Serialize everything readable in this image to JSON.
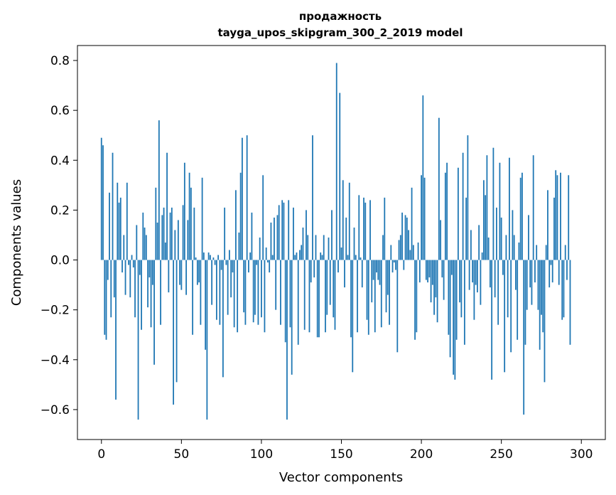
{
  "chart_data": {
    "type": "bar",
    "title": "продажность",
    "subtitle": "tayga_upos_skipgram_300_2_2019 model",
    "xlabel": "Vector components",
    "ylabel": "Components values",
    "xlim": [
      -15,
      315
    ],
    "ylim": [
      -0.72,
      0.86
    ],
    "x_ticks": [
      0,
      50,
      100,
      150,
      200,
      250,
      300
    ],
    "x_tick_labels": [
      "0",
      "50",
      "100",
      "150",
      "200",
      "250",
      "300"
    ],
    "y_ticks": [
      -0.6,
      -0.4,
      -0.2,
      0.0,
      0.2,
      0.4,
      0.6,
      0.8
    ],
    "y_tick_labels": [
      "−0.6",
      "−0.4",
      "−0.2",
      "0.0",
      "0.2",
      "0.4",
      "0.6",
      "0.8"
    ],
    "grid": false,
    "bar_color": "#1f77b4",
    "values": [
      0.49,
      0.46,
      -0.3,
      -0.32,
      -0.08,
      0.27,
      -0.23,
      0.43,
      -0.15,
      -0.56,
      0.31,
      0.23,
      0.25,
      -0.05,
      0.1,
      -0.14,
      0.31,
      -0.02,
      -0.15,
      0.02,
      -0.03,
      -0.23,
      0.14,
      -0.64,
      -0.06,
      -0.28,
      0.19,
      0.13,
      0.1,
      -0.19,
      -0.07,
      -0.27,
      -0.1,
      -0.42,
      0.29,
      0.15,
      0.56,
      -0.26,
      0.18,
      0.21,
      0.07,
      0.43,
      -0.13,
      0.19,
      0.21,
      -0.58,
      0.12,
      -0.49,
      0.16,
      -0.1,
      -0.12,
      0.22,
      0.39,
      -0.14,
      0.16,
      0.35,
      0.29,
      -0.3,
      0.21,
      0.01,
      -0.1,
      -0.09,
      -0.26,
      0.33,
      0.03,
      -0.36,
      -0.64,
      0.03,
      0.02,
      -0.18,
      0.01,
      -0.02,
      -0.24,
      0.02,
      -0.26,
      -0.04,
      -0.47,
      0.21,
      -0.02,
      -0.22,
      0.04,
      -0.15,
      -0.05,
      -0.27,
      0.28,
      -0.29,
      0.11,
      0.35,
      0.49,
      -0.21,
      -0.26,
      0.5,
      -0.05,
      0.03,
      0.19,
      -0.25,
      -0.22,
      -0.02,
      -0.26,
      0.09,
      -0.23,
      0.34,
      -0.29,
      0.05,
      -0.01,
      -0.05,
      0.15,
      0.02,
      0.17,
      -0.2,
      0.18,
      0.22,
      -0.26,
      0.24,
      0.23,
      -0.33,
      -0.64,
      0.24,
      -0.27,
      -0.46,
      0.21,
      0.02,
      0.03,
      -0.34,
      0.04,
      0.06,
      0.13,
      -0.28,
      0.2,
      0.1,
      -0.29,
      -0.09,
      0.5,
      -0.07,
      0.1,
      -0.31,
      -0.31,
      0.03,
      0.02,
      0.1,
      -0.29,
      -0.22,
      0.09,
      -0.18,
      0.2,
      -0.23,
      -0.28,
      0.79,
      -0.05,
      0.67,
      0.05,
      0.32,
      -0.11,
      0.17,
      0.02,
      0.31,
      -0.31,
      -0.45,
      0.13,
      0.02,
      -0.29,
      0.26,
      0.01,
      -0.11,
      0.25,
      0.23,
      -0.24,
      -0.3,
      0.24,
      -0.17,
      -0.08,
      -0.29,
      -0.05,
      -0.08,
      -0.1,
      -0.27,
      0.1,
      0.25,
      -0.21,
      -0.14,
      -0.26,
      0.06,
      -0.05,
      -0.01,
      -0.04,
      -0.37,
      0.08,
      0.1,
      0.19,
      -0.04,
      0.18,
      0.17,
      0.12,
      0.04,
      0.29,
      0.06,
      -0.32,
      -0.29,
      0.07,
      -0.09,
      0.34,
      0.66,
      0.33,
      -0.08,
      -0.09,
      -0.07,
      -0.17,
      -0.1,
      -0.22,
      -0.15,
      -0.25,
      0.57,
      0.16,
      -0.07,
      -0.16,
      0.35,
      0.39,
      -0.3,
      -0.39,
      -0.06,
      -0.46,
      -0.48,
      -0.32,
      0.37,
      -0.17,
      -0.23,
      0.43,
      -0.34,
      0.25,
      0.5,
      -0.12,
      0.12,
      -0.09,
      -0.24,
      -0.1,
      -0.13,
      0.14,
      -0.18,
      0.03,
      0.32,
      0.26,
      0.42,
      0.09,
      -0.11,
      -0.48,
      0.45,
      -0.15,
      0.21,
      -0.26,
      0.39,
      0.17,
      -0.06,
      -0.45,
      0.1,
      -0.23,
      0.41,
      -0.37,
      0.2,
      0.1,
      -0.12,
      -0.32,
      0.07,
      0.33,
      0.35,
      -0.62,
      -0.34,
      -0.2,
      0.18,
      -0.11,
      -0.18,
      0.42,
      -0.09,
      0.06,
      -0.2,
      -0.36,
      -0.22,
      -0.29,
      -0.49,
      0.06,
      0.28,
      -0.11,
      -0.02,
      -0.09,
      0.25,
      0.36,
      0.34,
      -0.1,
      0.35,
      -0.24,
      -0.23,
      0.06,
      -0.08,
      0.34,
      -0.34
    ]
  }
}
